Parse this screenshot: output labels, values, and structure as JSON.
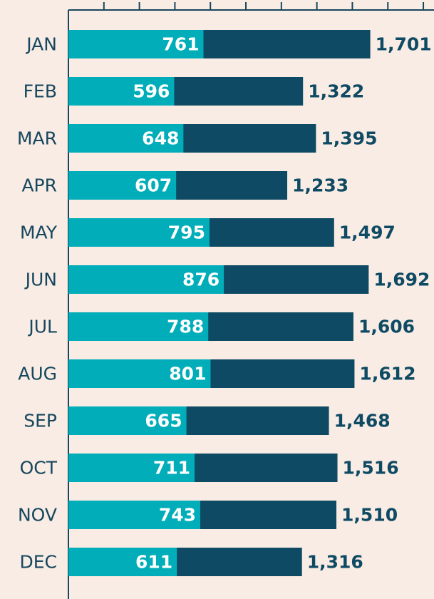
{
  "chart_data": {
    "type": "bar",
    "categories": [
      "JAN",
      "FEB",
      "MAR",
      "APR",
      "MAY",
      "JUN",
      "JUL",
      "AUG",
      "SEP",
      "OCT",
      "NOV",
      "DEC"
    ],
    "series": [
      {
        "color": "#00adb9",
        "values": [
          761,
          596,
          648,
          607,
          795,
          876,
          788,
          801,
          665,
          711,
          743,
          611
        ]
      },
      {
        "color": "#0e4a63",
        "values": [
          1701,
          1322,
          1395,
          1233,
          1497,
          1692,
          1606,
          1612,
          1468,
          1516,
          1510,
          1316
        ],
        "value_labels": [
          "1,701",
          "1,322",
          "1,395",
          "1,233",
          "1,497",
          "1,692",
          "1,606",
          "1,612",
          "1,468",
          "1,516",
          "1,510",
          "1,316"
        ]
      }
    ],
    "xlim": [
      0,
      2060
    ],
    "xticks": [
      200,
      400,
      600,
      800,
      1000,
      1200,
      1400,
      1600,
      1800,
      2000
    ]
  }
}
